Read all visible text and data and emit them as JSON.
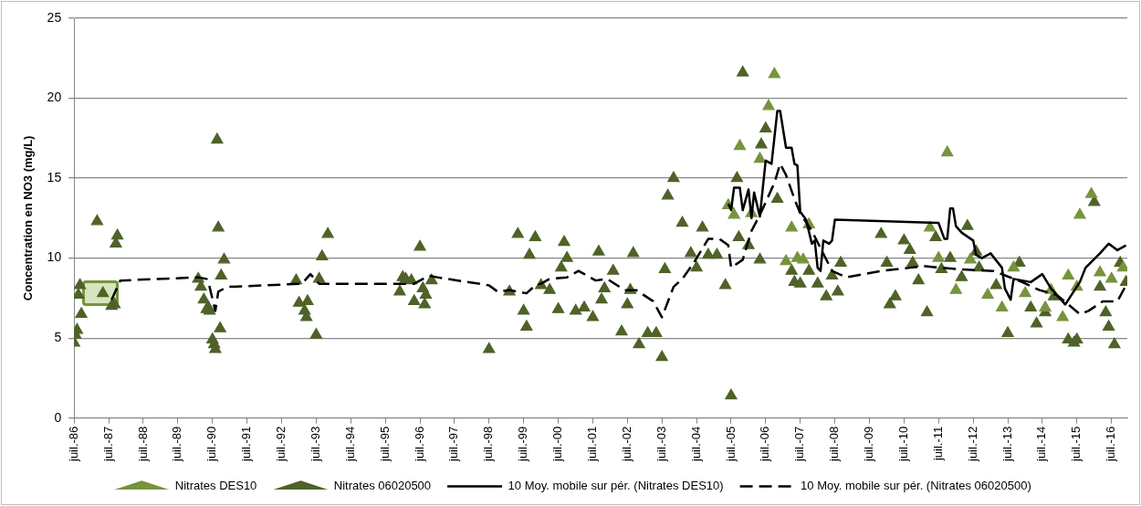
{
  "chart_data": {
    "type": "scatter",
    "ylabel": "Concentration en NO3 (mg/L)",
    "xlim": [
      "1986-07",
      "2016-12-15"
    ],
    "ylim": [
      0,
      25
    ],
    "yticks": [
      0,
      5,
      10,
      15,
      20,
      25
    ],
    "xticks": [
      {
        "value": "1986-07",
        "label": "juil.-86"
      },
      {
        "value": "1987-07",
        "label": "juil.-87"
      },
      {
        "value": "1988-07",
        "label": "juil.-88"
      },
      {
        "value": "1989-07",
        "label": "juil.-89"
      },
      {
        "value": "1990-07",
        "label": "juil.-90"
      },
      {
        "value": "1991-07",
        "label": "juil.-91"
      },
      {
        "value": "1992-07",
        "label": "juil.-92"
      },
      {
        "value": "1993-07",
        "label": "juil.-93"
      },
      {
        "value": "1994-07",
        "label": "juil.-94"
      },
      {
        "value": "1995-07",
        "label": "juil.-95"
      },
      {
        "value": "1996-07",
        "label": "juil.-96"
      },
      {
        "value": "1997-07",
        "label": "juil.-97"
      },
      {
        "value": "1998-07",
        "label": "juil.-98"
      },
      {
        "value": "1999-07",
        "label": "juil.-99"
      },
      {
        "value": "2000-07",
        "label": "juil.-00"
      },
      {
        "value": "2001-07",
        "label": "juil.-01"
      },
      {
        "value": "2002-07",
        "label": "juil.-02"
      },
      {
        "value": "2003-07",
        "label": "juil.-03"
      },
      {
        "value": "2004-07",
        "label": "juil.-04"
      },
      {
        "value": "2005-07",
        "label": "juil.-05"
      },
      {
        "value": "2006-07",
        "label": "juil.-06"
      },
      {
        "value": "2007-07",
        "label": "juil.-07"
      },
      {
        "value": "2008-07",
        "label": "juil.-08"
      },
      {
        "value": "2009-07",
        "label": "juil.-09"
      },
      {
        "value": "2010-07",
        "label": "juil.-10"
      },
      {
        "value": "2011-07",
        "label": "juil.-11"
      },
      {
        "value": "2012-07",
        "label": "juil.-12"
      },
      {
        "value": "2013-07",
        "label": "juil.-13"
      },
      {
        "value": "2014-07",
        "label": "juil.-14"
      },
      {
        "value": "2015-07",
        "label": "juil.-15"
      },
      {
        "value": "2016-07",
        "label": "juil.-16"
      }
    ],
    "grid": "y",
    "legend": "bottom",
    "series": [
      {
        "name": "Nitrates DES10",
        "marker": "triangle",
        "color": "#77933c",
        "x": [
          "2005-06",
          "2005-08",
          "2005-10",
          "2006-02",
          "2006-05",
          "2006-08",
          "2006-10",
          "2007-02",
          "2007-04",
          "2007-06",
          "2007-08",
          "2007-10",
          "2011-04",
          "2011-07",
          "2011-10",
          "2012-01",
          "2012-06",
          "2012-12",
          "2013-05",
          "2013-09",
          "2014-01",
          "2014-08",
          "2014-10",
          "2015-02",
          "2015-04",
          "2015-07",
          "2015-08",
          "2015-12",
          "2016-03",
          "2016-07",
          "2016-11"
        ],
        "values": [
          13.3,
          12.7,
          17.0,
          12.8,
          16.2,
          19.5,
          21.5,
          9.8,
          11.9,
          10.0,
          9.9,
          12.1,
          11.9,
          10.0,
          16.6,
          8.0,
          9.9,
          7.7,
          6.9,
          9.4,
          7.8,
          6.9,
          8.0,
          6.3,
          8.9,
          8.2,
          12.7,
          14.0,
          9.1,
          8.7,
          9.4
        ]
      },
      {
        "name": "Nitrates 06020500",
        "marker": "triangle",
        "color": "#4f6228",
        "x": [
          "1986-07",
          "1986-07-15",
          "1986-08",
          "1986-08-15",
          "1986-09",
          "1986-09-15",
          "1987-03",
          "1987-05",
          "1987-08",
          "1987-09",
          "1987-09-15",
          "1987-10",
          "1990-02",
          "1990-03",
          "1990-04",
          "1990-05",
          "1990-05-20",
          "1990-06",
          "1990-07",
          "1990-07-20",
          "1990-08",
          "1990-08-20",
          "1990-09",
          "1990-09-20",
          "1990-10",
          "1990-11",
          "1992-12",
          "1993-01",
          "1993-03",
          "1993-03-20",
          "1993-04",
          "1993-07",
          "1993-08",
          "1993-09",
          "1993-11",
          "1995-12",
          "1996-01",
          "1996-02",
          "1996-04",
          "1996-05",
          "1996-07",
          "1996-08",
          "1996-09",
          "1996-08-20",
          "1996-11",
          "1998-07",
          "1999-02",
          "1999-05",
          "1999-07",
          "1999-08",
          "1999-09",
          "1999-11",
          "2000-01",
          "2000-04",
          "2000-07",
          "2000-08",
          "2000-09",
          "2000-10",
          "2001-01",
          "2001-04",
          "2001-07",
          "2001-09",
          "2001-10",
          "2001-11",
          "2002-02",
          "2002-05",
          "2002-07",
          "2002-08",
          "2002-09",
          "2002-11",
          "2003-02",
          "2003-05",
          "2003-07",
          "2003-08",
          "2003-09",
          "2003-11",
          "2004-02",
          "2004-05",
          "2004-07",
          "2004-09",
          "2004-11",
          "2005-02",
          "2005-05",
          "2005-07",
          "2005-09",
          "2005-09-20",
          "2005-11",
          "2006-01",
          "2006-05",
          "2006-05-15",
          "2006-07",
          "2006-11",
          "2007-04",
          "2007-05",
          "2007-07",
          "2007-10",
          "2008-01",
          "2008-04",
          "2008-06",
          "2008-08",
          "2008-09",
          "2009-11",
          "2010-01",
          "2010-02",
          "2010-04",
          "2010-07",
          "2010-09",
          "2010-10",
          "2010-12",
          "2011-03",
          "2011-06",
          "2011-08",
          "2011-11",
          "2012-03",
          "2012-05",
          "2012-08",
          "2012-09",
          "2013-03",
          "2013-07",
          "2013-11",
          "2014-03",
          "2014-05",
          "2014-08",
          "2014-11",
          "2015-04",
          "2015-06",
          "2015-07",
          "2016-01",
          "2016-03",
          "2016-05",
          "2016-06",
          "2016-08",
          "2016-10",
          "2016-12"
        ],
        "values": [
          4.7,
          5.2,
          5.5,
          7.7,
          8.3,
          6.5,
          12.3,
          7.8,
          7.0,
          7.1,
          10.9,
          11.4,
          8.7,
          8.2,
          7.4,
          6.8,
          6.9,
          6.7,
          4.9,
          4.6,
          4.3,
          17.4,
          11.9,
          5.6,
          8.9,
          9.9,
          8.6,
          7.2,
          6.7,
          6.3,
          7.3,
          5.2,
          8.7,
          10.1,
          11.5,
          7.9,
          8.8,
          8.7,
          8.6,
          7.3,
          10.7,
          8.1,
          7.7,
          7.1,
          8.6,
          4.3,
          7.9,
          11.5,
          6.7,
          5.7,
          10.2,
          11.3,
          8.3,
          8.0,
          6.8,
          9.4,
          11.0,
          10.0,
          6.7,
          6.9,
          6.3,
          10.4,
          7.4,
          8.1,
          9.2,
          5.4,
          7.1,
          8.0,
          10.3,
          4.6,
          5.3,
          5.3,
          3.8,
          9.3,
          13.9,
          15.0,
          12.2,
          10.3,
          9.4,
          11.9,
          10.2,
          10.2,
          8.3,
          1.4,
          15.0,
          11.3,
          21.6,
          10.8,
          9.9,
          17.1,
          18.1,
          13.7,
          9.2,
          8.5,
          8.4,
          9.2,
          8.4,
          7.6,
          8.9,
          7.9,
          9.7,
          11.5,
          9.7,
          7.1,
          7.6,
          11.1,
          10.5,
          9.7,
          8.6,
          6.6,
          11.3,
          9.3,
          10.0,
          8.8,
          12.0,
          10.4,
          9.4,
          8.3,
          5.3,
          9.7,
          6.9,
          5.9,
          6.6,
          7.6,
          4.9,
          4.7,
          4.9,
          13.5,
          8.2,
          6.6,
          5.7,
          4.6,
          9.7,
          8.5
        ]
      },
      {
        "name": "10 Moy. mobile sur pér. (Nitrates DES10)",
        "type": "line",
        "marker": "none",
        "line_style": "solid",
        "color": "#000000",
        "x": [
          "2005-06",
          "2005-07",
          "2005-08",
          "2005-10",
          "2005-11",
          "2006-01",
          "2006-02",
          "2006-03",
          "2006-05",
          "2006-06",
          "2006-07",
          "2006-09",
          "2006-11",
          "2006-12",
          "2007-02",
          "2007-04",
          "2007-05",
          "2007-06",
          "2007-07",
          "2007-09",
          "2007-11",
          "2007-12",
          "2008-01",
          "2008-02",
          "2008-03",
          "2008-05",
          "2008-06",
          "2008-07",
          "2011-07",
          "2011-09",
          "2011-10",
          "2011-11",
          "2011-12",
          "2012-01",
          "2012-03",
          "2012-07",
          "2012-08",
          "2012-10",
          "2013-01",
          "2013-05",
          "2013-06",
          "2013-08",
          "2013-09",
          "2014-03",
          "2014-07",
          "2014-10",
          "2015-03",
          "2015-08",
          "2015-10",
          "2016-03",
          "2016-06",
          "2016-09",
          "2016-12"
        ],
        "values": [
          13.4,
          13.0,
          14.4,
          14.4,
          13.0,
          14.3,
          12.5,
          14.1,
          12.6,
          14.4,
          16.1,
          15.9,
          19.2,
          19.2,
          16.9,
          16.9,
          15.9,
          15.8,
          12.9,
          12.4,
          10.9,
          11.1,
          9.4,
          9.2,
          11.1,
          10.9,
          11.1,
          12.4,
          12.2,
          11.2,
          11.2,
          13.1,
          13.1,
          12.0,
          11.6,
          11.1,
          10.2,
          10.0,
          10.3,
          9.4,
          8.1,
          7.4,
          8.7,
          8.5,
          9.0,
          8.1,
          7.1,
          8.5,
          9.4,
          10.3,
          10.9,
          10.5,
          10.8
        ]
      },
      {
        "name": "10 Moy. mobile sur pér. (Nitrates 06020500)",
        "type": "line",
        "marker": "none",
        "line_style": "dashed",
        "color": "#000000",
        "x": [
          "1987-08",
          "1987-11",
          "1990-02",
          "1990-05",
          "1990-06",
          "1990-08",
          "1990-09",
          "1990-12",
          "1993-02",
          "1993-05",
          "1993-08",
          "1996-05",
          "1996-10",
          "1997-01",
          "1998-07",
          "1998-10",
          "1999-02",
          "1999-08",
          "1999-11",
          "2000-01",
          "2000-04",
          "2000-10",
          "2001-02",
          "2001-08",
          "2001-12",
          "2002-06",
          "2002-10",
          "2003-04",
          "2003-07",
          "2003-11",
          "2004-02",
          "2004-06",
          "2004-11",
          "2005-03",
          "2005-06",
          "2005-07",
          "2005-11",
          "2006-02",
          "2006-05",
          "2006-10",
          "2006-12",
          "2007-02",
          "2007-05",
          "2007-07",
          "2007-11",
          "2008-06",
          "2008-11",
          "2009-11",
          "2010-09",
          "2011-02",
          "2012-02",
          "2013-02",
          "2013-12",
          "2014-06",
          "2014-12",
          "2015-08",
          "2015-11",
          "2016-04",
          "2016-09",
          "2016-12"
        ],
        "values": [
          7.4,
          8.6,
          8.8,
          8.7,
          8.2,
          6.7,
          7.9,
          8.2,
          8.4,
          9.0,
          8.4,
          8.4,
          8.9,
          8.8,
          8.3,
          7.9,
          8.0,
          7.8,
          8.3,
          8.4,
          8.7,
          8.8,
          9.2,
          8.6,
          8.7,
          8.0,
          8.0,
          7.3,
          6.3,
          8.2,
          8.7,
          9.7,
          11.2,
          11.2,
          10.8,
          9.4,
          9.9,
          11.7,
          12.7,
          14.7,
          15.9,
          15.2,
          13.7,
          12.8,
          11.7,
          9.2,
          8.8,
          9.2,
          9.4,
          9.5,
          9.3,
          9.2,
          8.5,
          8.0,
          7.7,
          6.5,
          6.7,
          7.3,
          7.3,
          8.3
        ]
      }
    ]
  }
}
